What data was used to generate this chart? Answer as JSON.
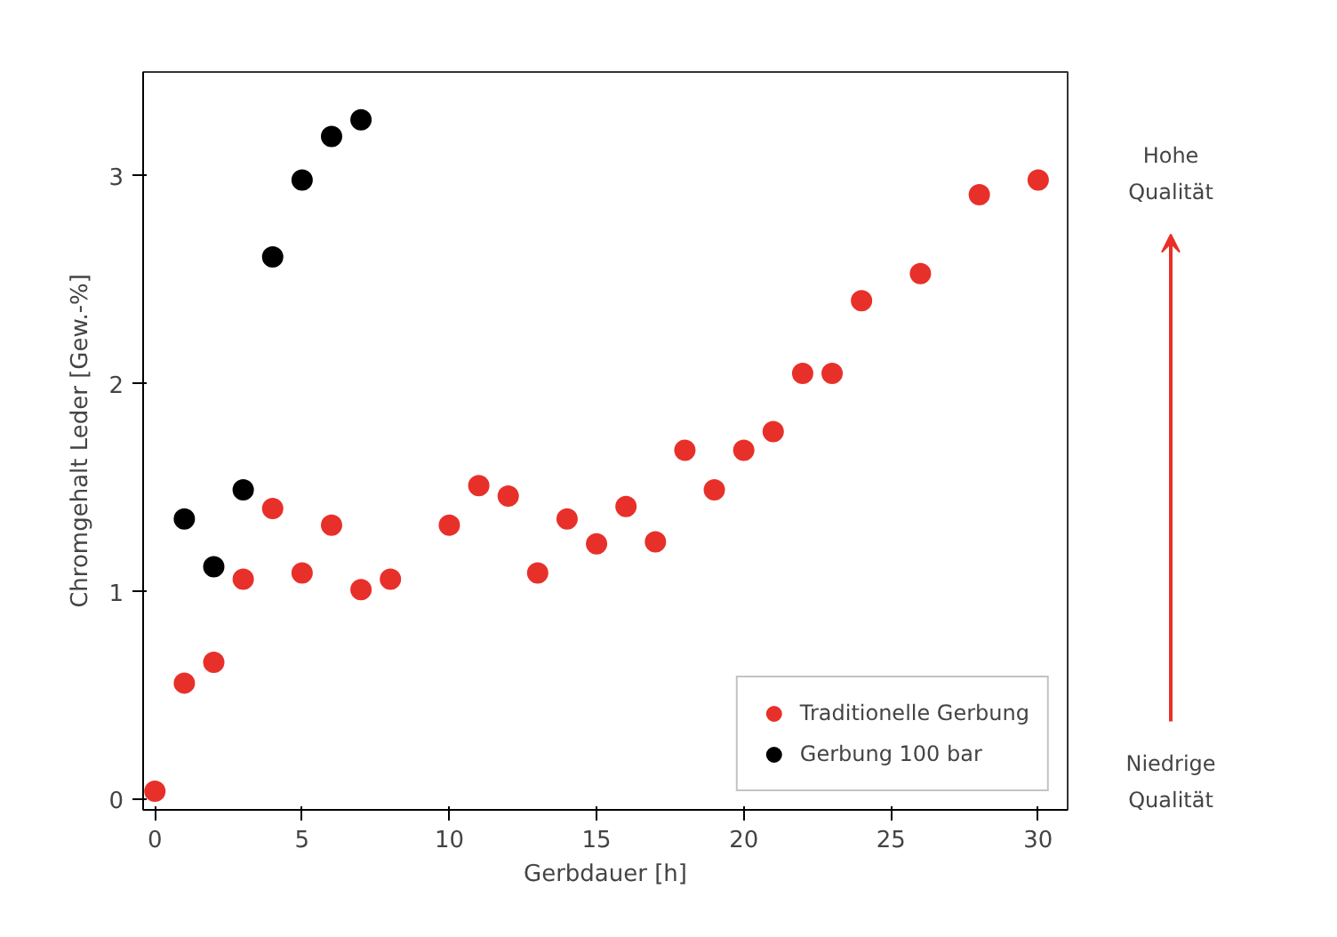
{
  "chart_data": {
    "type": "scatter",
    "xlabel": "Gerbdauer [h]",
    "ylabel": "Chromgehalt Leder [Gew.-%]",
    "xlim": [
      -0.4,
      31
    ],
    "ylim": [
      -0.05,
      3.5
    ],
    "xticks": [
      0,
      5,
      10,
      15,
      20,
      25,
      30
    ],
    "yticks": [
      0,
      1,
      2,
      3
    ],
    "grid": false,
    "legend": "bottom right",
    "marker": "circle",
    "annotations": [
      "Hohe Qualität",
      "Niedrige Qualität"
    ],
    "series": [
      {
        "name": "Traditionelle Gerbung",
        "color": "#e8302a",
        "x": [
          0,
          1,
          2,
          3,
          4,
          5,
          6,
          7,
          8,
          10,
          11,
          12,
          13,
          14,
          15,
          16,
          17,
          18,
          19,
          20,
          21,
          22,
          23,
          24,
          26,
          28,
          30
        ],
        "values": [
          0.04,
          0.56,
          0.66,
          1.06,
          1.4,
          1.09,
          1.32,
          1.01,
          1.06,
          1.32,
          1.51,
          1.46,
          1.09,
          1.35,
          1.23,
          1.41,
          1.24,
          1.68,
          1.49,
          1.68,
          1.77,
          2.05,
          2.05,
          2.4,
          2.53,
          2.91,
          2.98
        ]
      },
      {
        "name": "Gerbung 100 bar",
        "color": "#000000",
        "x": [
          1,
          2,
          3,
          4,
          5,
          6,
          7
        ],
        "values": [
          1.35,
          1.12,
          1.49,
          2.61,
          2.98,
          3.19,
          3.27
        ]
      }
    ]
  }
}
